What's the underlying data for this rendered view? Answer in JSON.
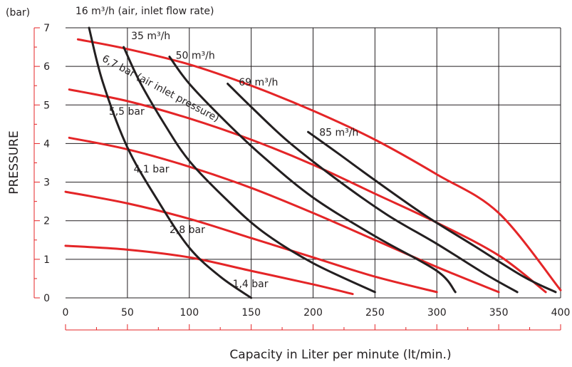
{
  "chart_data": {
    "type": "line",
    "title": "",
    "xlabel": "Capacity in Liter per minute (lt/min.)",
    "ylabel": "PRESSURE",
    "y_unit": "(bar)",
    "xlim": [
      0,
      400
    ],
    "ylim": [
      0,
      7
    ],
    "x_ticks": [
      0,
      50,
      100,
      150,
      200,
      250,
      300,
      350,
      400
    ],
    "y_ticks": [
      0,
      1,
      2,
      3,
      4,
      5,
      6,
      7
    ],
    "grid": true,
    "colors": {
      "pressure_curves": "#e42527",
      "air_flow_curves": "#231f20",
      "axis": "#e42527",
      "grid": "#231f20"
    },
    "pressure_curves": [
      {
        "label": "1,4 bar",
        "points": [
          [
            0,
            1.35
          ],
          [
            50,
            1.25
          ],
          [
            100,
            1.05
          ],
          [
            150,
            0.7
          ],
          [
            200,
            0.35
          ],
          [
            232,
            0.1
          ]
        ]
      },
      {
        "label": "2,8 bar",
        "points": [
          [
            0,
            2.75
          ],
          [
            50,
            2.45
          ],
          [
            100,
            2.05
          ],
          [
            150,
            1.55
          ],
          [
            200,
            1.05
          ],
          [
            250,
            0.55
          ],
          [
            300,
            0.15
          ]
        ]
      },
      {
        "label": "4,1 bar",
        "points": [
          [
            3,
            4.15
          ],
          [
            50,
            3.85
          ],
          [
            100,
            3.4
          ],
          [
            150,
            2.85
          ],
          [
            200,
            2.2
          ],
          [
            250,
            1.5
          ],
          [
            300,
            0.8
          ],
          [
            350,
            0.15
          ]
        ]
      },
      {
        "label": "5,5 bar",
        "points": [
          [
            3,
            5.4
          ],
          [
            50,
            5.1
          ],
          [
            100,
            4.65
          ],
          [
            150,
            4.1
          ],
          [
            200,
            3.45
          ],
          [
            250,
            2.7
          ],
          [
            300,
            1.95
          ],
          [
            350,
            1.1
          ],
          [
            388,
            0.15
          ]
        ]
      },
      {
        "label": "6,7 bar",
        "note": "(air inlet pressure)",
        "points": [
          [
            10,
            6.7
          ],
          [
            50,
            6.45
          ],
          [
            100,
            6.05
          ],
          [
            150,
            5.5
          ],
          [
            200,
            4.85
          ],
          [
            250,
            4.1
          ],
          [
            300,
            3.2
          ],
          [
            350,
            2.2
          ],
          [
            400,
            0.2
          ]
        ]
      }
    ],
    "air_flow_curves": [
      {
        "label": "16 m³/h",
        "note": "(air, inlet flow rate)",
        "points": [
          [
            19,
            7
          ],
          [
            30,
            5.6
          ],
          [
            50,
            3.9
          ],
          [
            75,
            2.5
          ],
          [
            100,
            1.3
          ],
          [
            125,
            0.55
          ],
          [
            150,
            0
          ]
        ]
      },
      {
        "label": "35 m³/h",
        "points": [
          [
            47,
            6.5
          ],
          [
            60,
            5.6
          ],
          [
            80,
            4.5
          ],
          [
            100,
            3.55
          ],
          [
            130,
            2.55
          ],
          [
            160,
            1.7
          ],
          [
            200,
            0.9
          ],
          [
            250,
            0.15
          ]
        ]
      },
      {
        "label": "50 m³/h",
        "points": [
          [
            84,
            6.25
          ],
          [
            100,
            5.55
          ],
          [
            130,
            4.55
          ],
          [
            160,
            3.65
          ],
          [
            200,
            2.6
          ],
          [
            250,
            1.6
          ],
          [
            300,
            0.7
          ],
          [
            315,
            0.15
          ]
        ]
      },
      {
        "label": "69 m³/h",
        "points": [
          [
            131,
            5.55
          ],
          [
            150,
            4.95
          ],
          [
            180,
            4.05
          ],
          [
            220,
            3.05
          ],
          [
            260,
            2.15
          ],
          [
            300,
            1.4
          ],
          [
            340,
            0.6
          ],
          [
            365,
            0.15
          ]
        ]
      },
      {
        "label": "85 m³/h",
        "points": [
          [
            196,
            4.3
          ],
          [
            220,
            3.75
          ],
          [
            250,
            3.05
          ],
          [
            290,
            2.15
          ],
          [
            330,
            1.35
          ],
          [
            370,
            0.55
          ],
          [
            396,
            0.15
          ]
        ]
      }
    ],
    "annotations": [
      {
        "text": "16 m³/h  (air, inlet flow rate)",
        "x": 8,
        "y": 7.35
      },
      {
        "text": "35 m³/h",
        "x": 53,
        "y": 6.7
      },
      {
        "text": "50 m³/h",
        "x": 89,
        "y": 6.2
      },
      {
        "text": "69 m³/h",
        "x": 140,
        "y": 5.5
      },
      {
        "text": "85 m³/h",
        "x": 205,
        "y": 4.2
      },
      {
        "text": "6,7 bar (air inlet pressure)",
        "x": 29,
        "y": 6.15,
        "angle": 28
      },
      {
        "text": "5,5 bar",
        "x": 35,
        "y": 4.75
      },
      {
        "text": "4,1 bar",
        "x": 55,
        "y": 3.25
      },
      {
        "text": "2,8 bar",
        "x": 84,
        "y": 1.68
      },
      {
        "text": "1,4 bar",
        "x": 135,
        "y": 0.28
      }
    ]
  }
}
